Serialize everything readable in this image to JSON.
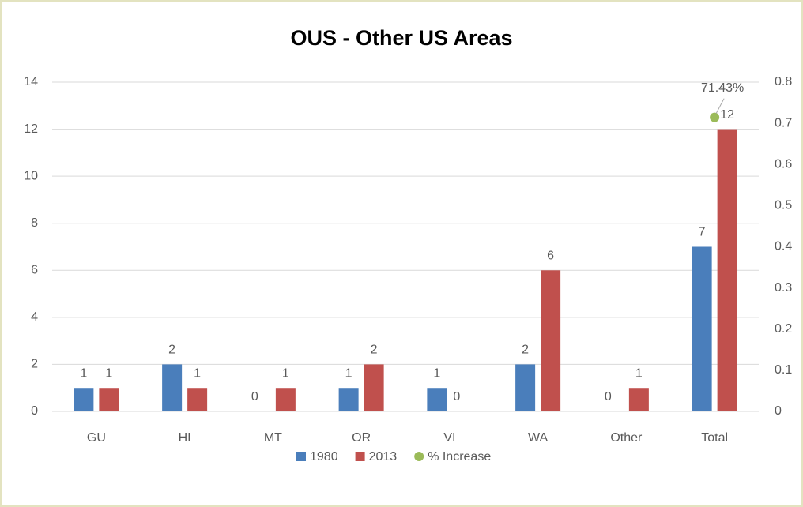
{
  "chart_data": {
    "type": "bar",
    "title": "OUS -  Other US Areas",
    "categories": [
      "GU",
      "HI",
      "MT",
      "OR",
      "VI",
      "WA",
      "Other",
      "Total"
    ],
    "series": [
      {
        "name": "1980",
        "color": "#4a7ebb",
        "values": [
          1,
          2,
          0,
          1,
          1,
          2,
          0,
          7
        ]
      },
      {
        "name": "2013",
        "color": "#c0504d",
        "values": [
          1,
          1,
          1,
          2,
          0,
          6,
          1,
          12
        ]
      },
      {
        "name": "% Increase",
        "color": "#9bbb59",
        "type": "scatter",
        "axis": "y2",
        "values": [
          null,
          null,
          null,
          null,
          null,
          null,
          null,
          0.7143
        ],
        "value_labels": [
          null,
          null,
          null,
          null,
          null,
          null,
          null,
          "71.43%"
        ]
      }
    ],
    "ylim": [
      0,
      14
    ],
    "yticks": [
      0,
      2,
      4,
      6,
      8,
      10,
      12,
      14
    ],
    "y2lim": [
      0,
      0.8
    ],
    "y2ticks": [
      0,
      0.1,
      0.2,
      0.3,
      0.4,
      0.5,
      0.6,
      0.7,
      0.8
    ],
    "grid": true,
    "legend": "bottom"
  }
}
